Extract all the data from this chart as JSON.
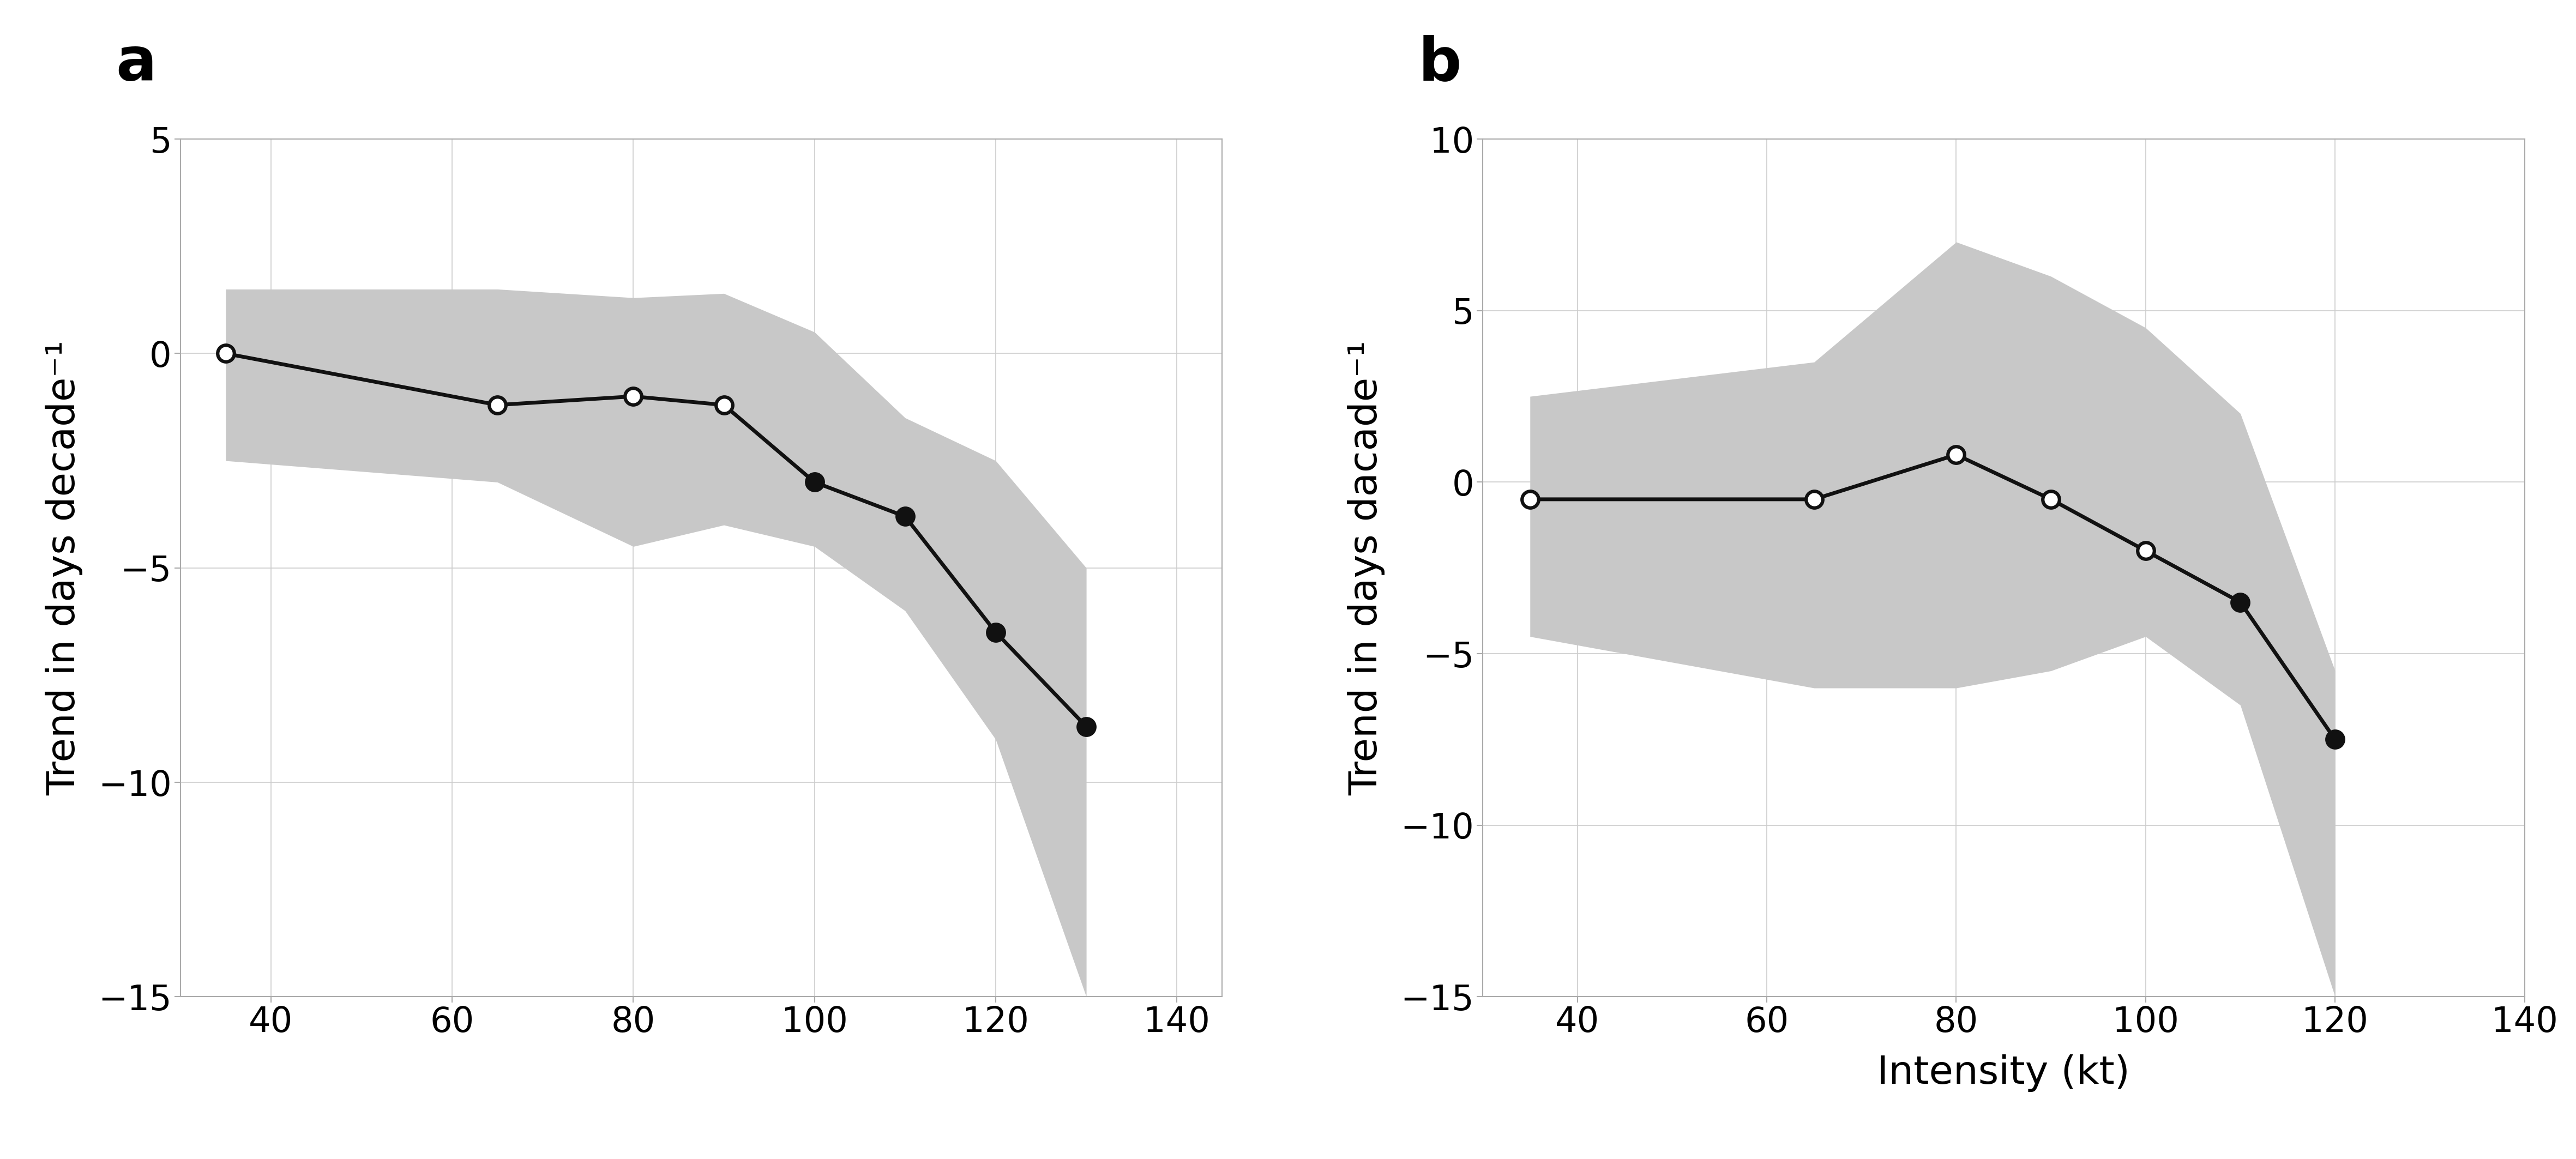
{
  "panel_a": {
    "x": [
      35,
      65,
      80,
      90,
      100,
      110,
      120,
      130
    ],
    "y": [
      0.0,
      -1.2,
      -1.0,
      -1.2,
      -3.0,
      -3.8,
      -6.5,
      -8.7
    ],
    "ci_upper": [
      1.5,
      1.5,
      1.3,
      1.4,
      0.5,
      -1.5,
      -2.5,
      -5.0
    ],
    "ci_lower": [
      -2.5,
      -3.0,
      -4.5,
      -4.0,
      -4.5,
      -6.0,
      -9.0,
      -15.0
    ],
    "filled": [
      false,
      false,
      false,
      false,
      true,
      true,
      true,
      true
    ],
    "label": "a",
    "ylabel": "Trend in days decade⁻¹",
    "xlabel": "",
    "ylim": [
      -15,
      5
    ],
    "xlim": [
      30,
      145
    ],
    "yticks": [
      5,
      0,
      -5,
      -10,
      -15
    ],
    "xticks": [
      40,
      60,
      80,
      100,
      120,
      140
    ]
  },
  "panel_b": {
    "x": [
      35,
      65,
      80,
      90,
      100,
      110,
      120
    ],
    "y": [
      -0.5,
      -0.5,
      0.8,
      -0.5,
      -2.0,
      -3.5,
      -7.5
    ],
    "ci_upper": [
      2.5,
      3.5,
      7.0,
      6.0,
      4.5,
      2.0,
      -5.5
    ],
    "ci_lower": [
      -4.5,
      -6.0,
      -6.0,
      -5.5,
      -4.5,
      -6.5,
      -15.0
    ],
    "filled": [
      false,
      false,
      false,
      false,
      false,
      true,
      true
    ],
    "label": "b",
    "ylabel": "Trend in days dacade⁻¹",
    "xlabel": "Intensity (kt)",
    "ylim": [
      -15,
      10
    ],
    "xlim": [
      30,
      140
    ],
    "yticks": [
      10,
      5,
      0,
      -5,
      -10,
      -15
    ],
    "xticks": [
      40,
      60,
      80,
      100,
      120,
      140
    ]
  },
  "line_color": "#111111",
  "fill_color": "#c8c8c8",
  "fill_alpha": 1.0,
  "marker_size": 22,
  "line_width": 5.0,
  "marker_edge_width": 4.5,
  "grid_color": "#cccccc",
  "label_fontsize": 52,
  "tick_fontsize": 46,
  "panel_label_fontsize": 80,
  "background_color": "#ffffff"
}
